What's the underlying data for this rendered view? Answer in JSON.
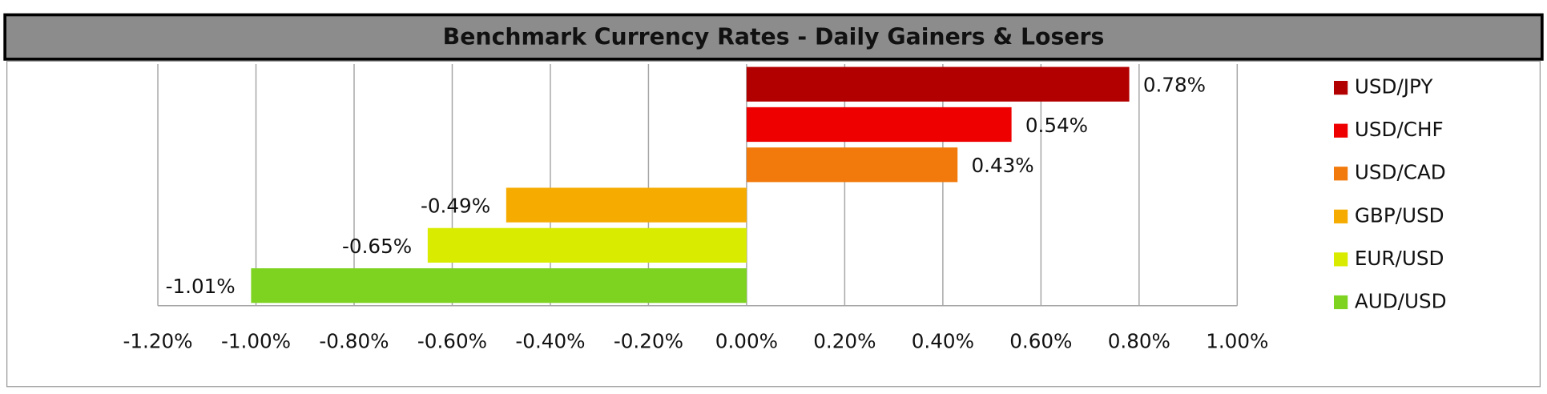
{
  "chart_data": {
    "type": "bar",
    "orientation": "horizontal",
    "title": "Benchmark Currency Rates - Daily Gainers & Losers",
    "categories": [
      "USD/JPY",
      "USD/CHF",
      "USD/CAD",
      "GBP/USD",
      "EUR/USD",
      "AUD/USD"
    ],
    "values": [
      0.78,
      0.54,
      0.43,
      -0.49,
      -0.65,
      -1.01
    ],
    "value_labels": [
      "0.78%",
      "0.54%",
      "0.43%",
      "-0.49%",
      "-0.65%",
      "-1.01%"
    ],
    "colors": [
      "#b20000",
      "#ee0000",
      "#f27a0c",
      "#f6ab00",
      "#d9ec00",
      "#7ed321"
    ],
    "xlim": [
      -1.2,
      1.0
    ],
    "xticks": [
      {
        "value": -1.2,
        "label": "-1.20%"
      },
      {
        "value": -1.0,
        "label": "-1.00%"
      },
      {
        "value": -0.8,
        "label": "-0.80%"
      },
      {
        "value": -0.6,
        "label": "-0.60%"
      },
      {
        "value": -0.4,
        "label": "-0.40%"
      },
      {
        "value": -0.2,
        "label": "-0.20%"
      },
      {
        "value": 0,
        "label": "0.00%"
      },
      {
        "value": 0.2,
        "label": "0.20%"
      },
      {
        "value": 0.4,
        "label": "0.40%"
      },
      {
        "value": 0.6,
        "label": "0.60%"
      },
      {
        "value": 0.8,
        "label": "0.80%"
      },
      {
        "value": 1.0,
        "label": "1.00%"
      }
    ],
    "grid": true,
    "legend": "right"
  }
}
